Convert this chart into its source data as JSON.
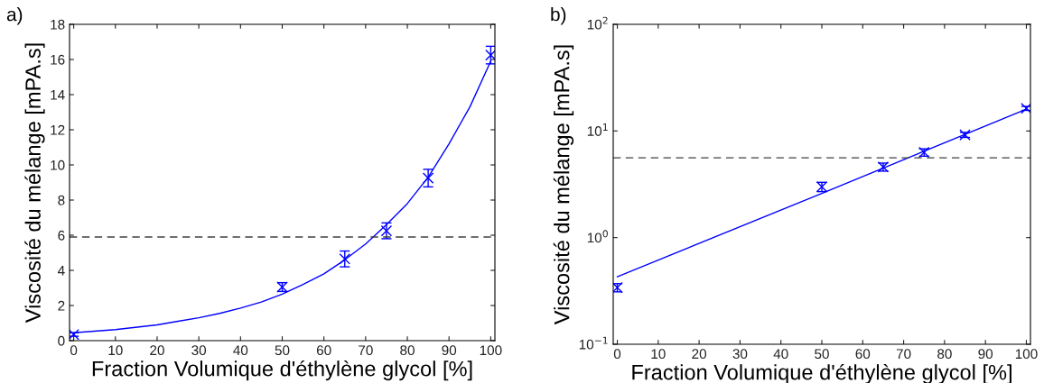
{
  "chart_data": [
    {
      "type": "scatter",
      "xlabel": "Fraction Volumique d'éthylène glycol [%]",
      "ylabel": "Viscosité du mélange [mPA.s]",
      "annotations": [
        "a)"
      ],
      "xlim": [
        -1,
        101
      ],
      "xticks": [
        0,
        10,
        20,
        30,
        40,
        50,
        60,
        70,
        80,
        90,
        100
      ],
      "ylim": [
        0,
        18
      ],
      "yticks": [
        0,
        2,
        4,
        6,
        8,
        10,
        12,
        14,
        16,
        18
      ],
      "grid": false,
      "legend": false,
      "series": [
        {
          "color": "#0000ff",
          "marker": "cross",
          "x": [
            0,
            50,
            65,
            75,
            85,
            100
          ],
          "values": [
            0.35,
            3.05,
            4.65,
            6.25,
            9.25,
            16.25
          ],
          "errors": [
            0.1,
            0.25,
            0.45,
            0.45,
            0.5,
            0.5
          ]
        },
        {
          "type": "line",
          "color": "#0000ff",
          "line_style": "solid",
          "marker": "none",
          "x": [
            0,
            10,
            20,
            25,
            30,
            35,
            40,
            45,
            50,
            55,
            60,
            65,
            70,
            75,
            80,
            85,
            90,
            95,
            100
          ],
          "values": [
            0.45,
            0.63,
            0.9,
            1.1,
            1.3,
            1.55,
            1.85,
            2.2,
            2.65,
            3.2,
            3.8,
            4.6,
            5.5,
            6.6,
            7.8,
            9.3,
            11.2,
            13.3,
            15.9
          ]
        }
      ],
      "ref_lines": [
        {
          "axis": "y",
          "value": 5.9,
          "color": "#404040",
          "line_style": "dashed"
        }
      ]
    },
    {
      "type": "scatter",
      "xlabel": "Fraction Volumique d'éthylène glycol [%]",
      "ylabel": "Viscosité du mélange [mPA.s]",
      "annotations": [
        "b)"
      ],
      "log": "y",
      "xlim": [
        -1,
        101
      ],
      "xticks": [
        0,
        10,
        20,
        30,
        40,
        50,
        60,
        70,
        80,
        90,
        100
      ],
      "ylim": [
        0.1,
        100
      ],
      "yticks": [
        {
          "value": 0.1,
          "label": "10$^{−1}$"
        },
        {
          "value": 1,
          "label": "10$^{0}$"
        },
        {
          "value": 10,
          "label": "10$^{1}$"
        },
        {
          "value": 100,
          "label": "10$^{2}$"
        }
      ],
      "grid": false,
      "legend": false,
      "series": [
        {
          "color": "#0000ff",
          "marker": "cross",
          "x": [
            0,
            50,
            65,
            75,
            85,
            100
          ],
          "values": [
            0.34,
            3.0,
            4.6,
            6.3,
            9.2,
            16.3
          ],
          "errors": [
            0.03,
            0.3,
            0.4,
            0.5,
            0.5,
            0.7
          ]
        },
        {
          "type": "line",
          "color": "#0000ff",
          "line_style": "solid",
          "marker": "none",
          "x": [
            0,
            50,
            100
          ],
          "values": [
            0.43,
            2.6,
            16.0
          ]
        }
      ],
      "ref_lines": [
        {
          "axis": "y",
          "value": 5.6,
          "color": "#404040",
          "line_style": "dashed"
        }
      ]
    }
  ]
}
